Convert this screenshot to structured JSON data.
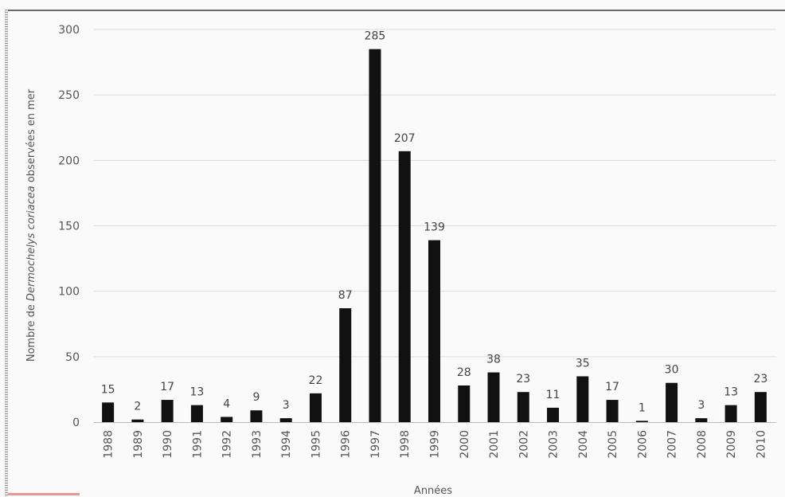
{
  "chart_data": {
    "type": "bar",
    "xlabel": "Années",
    "ylabel_parts": [
      "Nombre de ",
      "Dermochelys coriacea",
      " observées en mer"
    ],
    "ylim": [
      0,
      300
    ],
    "yticks": [
      0,
      50,
      100,
      150,
      200,
      250,
      300
    ],
    "grid": true,
    "categories": [
      "1988",
      "1989",
      "1990",
      "1991",
      "1992",
      "1993",
      "1994",
      "1995",
      "1996",
      "1997",
      "1998",
      "1999",
      "2000",
      "2001",
      "2002",
      "2003",
      "2004",
      "2005",
      "2006",
      "2007",
      "2008",
      "2009",
      "2010"
    ],
    "values": [
      15,
      2,
      17,
      13,
      4,
      9,
      3,
      22,
      87,
      285,
      207,
      139,
      28,
      38,
      23,
      11,
      35,
      17,
      1,
      30,
      3,
      13,
      23
    ],
    "bar_color": "#111111",
    "grid_color": "#dcdcdc"
  }
}
